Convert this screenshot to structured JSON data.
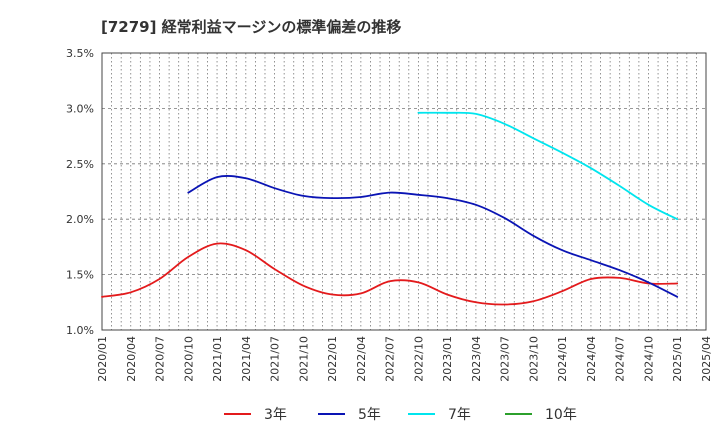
{
  "chart_data": {
    "type": "line",
    "title": "[7279]  経常利益マージンの標準偏差の推移",
    "xlabel": "",
    "ylabel": "",
    "ylim": [
      1.0,
      3.5
    ],
    "y_ticks": [
      "1.0%",
      "1.5%",
      "2.0%",
      "2.5%",
      "3.0%",
      "3.5%"
    ],
    "x_ticks": [
      "2020/01",
      "2020/04",
      "2020/07",
      "2020/10",
      "2021/01",
      "2021/04",
      "2021/07",
      "2021/10",
      "2022/01",
      "2022/04",
      "2022/07",
      "2022/10",
      "2023/01",
      "2023/04",
      "2023/07",
      "2023/10",
      "2024/01",
      "2024/04",
      "2024/07",
      "2024/10",
      "2025/01",
      "2025/04"
    ],
    "grid": true,
    "legend_position": "bottom",
    "series": [
      {
        "name": "3年",
        "color": "#e31a1c",
        "points": [
          [
            "2020/01",
            1.3
          ],
          [
            "2020/04",
            1.34
          ],
          [
            "2020/07",
            1.46
          ],
          [
            "2020/10",
            1.66
          ],
          [
            "2021/01",
            1.78
          ],
          [
            "2021/04",
            1.72
          ],
          [
            "2021/07",
            1.55
          ],
          [
            "2021/10",
            1.4
          ],
          [
            "2022/01",
            1.32
          ],
          [
            "2022/04",
            1.33
          ],
          [
            "2022/07",
            1.44
          ],
          [
            "2022/10",
            1.43
          ],
          [
            "2023/01",
            1.32
          ],
          [
            "2023/04",
            1.25
          ],
          [
            "2023/07",
            1.23
          ],
          [
            "2023/10",
            1.26
          ],
          [
            "2024/01",
            1.35
          ],
          [
            "2024/04",
            1.46
          ],
          [
            "2024/07",
            1.47
          ],
          [
            "2024/10",
            1.42
          ],
          [
            "2025/01",
            1.42
          ]
        ]
      },
      {
        "name": "5年",
        "color": "#0a14b4",
        "points": [
          [
            "2020/10",
            2.24
          ],
          [
            "2021/01",
            2.38
          ],
          [
            "2021/04",
            2.37
          ],
          [
            "2021/07",
            2.28
          ],
          [
            "2021/10",
            2.21
          ],
          [
            "2022/01",
            2.19
          ],
          [
            "2022/04",
            2.2
          ],
          [
            "2022/07",
            2.24
          ],
          [
            "2022/10",
            2.22
          ],
          [
            "2023/01",
            2.19
          ],
          [
            "2023/04",
            2.13
          ],
          [
            "2023/07",
            2.01
          ],
          [
            "2023/10",
            1.85
          ],
          [
            "2024/01",
            1.72
          ],
          [
            "2024/04",
            1.63
          ],
          [
            "2024/07",
            1.54
          ],
          [
            "2024/10",
            1.43
          ],
          [
            "2025/01",
            1.3
          ]
        ]
      },
      {
        "name": "7年",
        "color": "#00e5ee",
        "points": [
          [
            "2022/10",
            2.96
          ],
          [
            "2023/01",
            2.96
          ],
          [
            "2023/04",
            2.95
          ],
          [
            "2023/07",
            2.86
          ],
          [
            "2023/10",
            2.73
          ],
          [
            "2024/01",
            2.6
          ],
          [
            "2024/04",
            2.46
          ],
          [
            "2024/07",
            2.3
          ],
          [
            "2024/10",
            2.13
          ],
          [
            "2025/01",
            2.0
          ]
        ]
      },
      {
        "name": "10年",
        "color": "#2ca02c",
        "points": []
      }
    ]
  }
}
